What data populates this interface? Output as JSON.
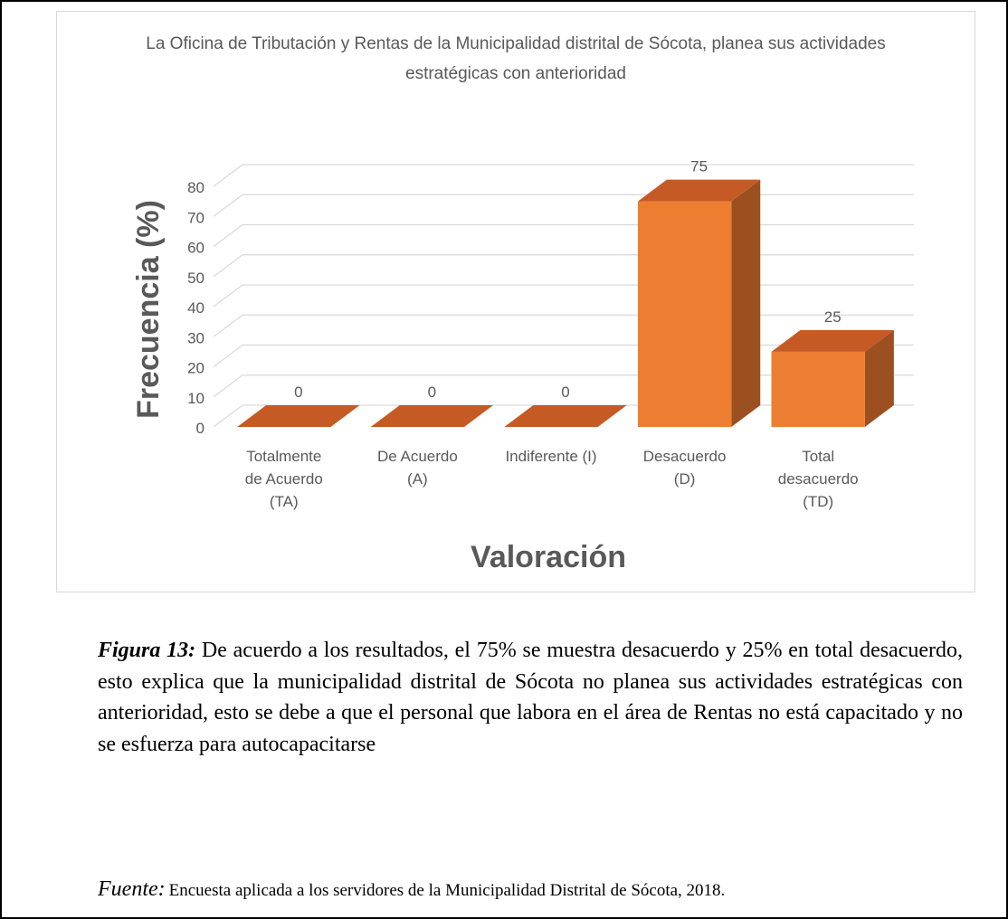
{
  "chart_data": {
    "type": "bar3d",
    "title": "La Oficina de Tributación y Rentas de la Municipalidad distrital de Sócota, planea sus actividades estratégicas con anterioridad",
    "categories": [
      "Totalmente de Acuerdo (TA)",
      "De Acuerdo (A)",
      "Indiferente (I)",
      "Desacuerdo (D)",
      "Total desacuerdo (TD)"
    ],
    "values": [
      0,
      0,
      0,
      75,
      25
    ],
    "color": "#ed7d31",
    "ylim": [
      0,
      80
    ],
    "yticks": [
      0,
      10,
      20,
      30,
      40,
      50,
      60,
      70,
      80
    ],
    "ylabel": "Frecuencia (%)",
    "xlabel": "Valoración",
    "grid": true
  },
  "caption": {
    "label": "Figura 13:",
    "text": "De acuerdo a los resultados, el 75% se muestra desacuerdo y 25% en total desacuerdo, esto explica que la municipalidad distrital de Sócota  no planea sus actividades estratégicas con anterioridad, esto se debe a que el personal que labora en el área de Rentas no está capacitado y no se esfuerza para autocapacitarse"
  },
  "source": {
    "label": "Fuente:",
    "text": "Encuesta aplicada a los servidores de la Municipalidad Distrital de Sócota, 2018."
  }
}
